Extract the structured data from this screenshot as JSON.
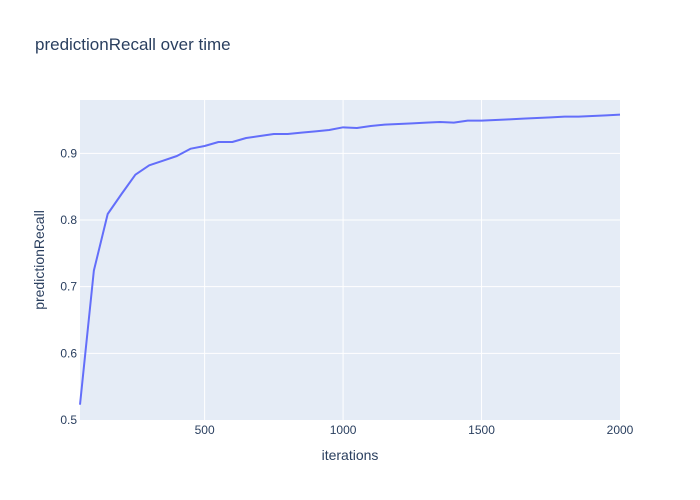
{
  "chart_data": {
    "type": "line",
    "title": "predictionRecall over time",
    "xlabel": "iterations",
    "ylabel": "predictionRecall",
    "xlim": [
      50,
      2000
    ],
    "ylim": [
      0.5,
      0.98
    ],
    "x_ticks": [
      500,
      1000,
      1500,
      2000
    ],
    "y_ticks": [
      0.5,
      0.6,
      0.7,
      0.8,
      0.9
    ],
    "x_tick_labels": [
      "500",
      "1000",
      "1500",
      "2000"
    ],
    "y_tick_labels": [
      "0.5",
      "0.6",
      "0.7",
      "0.8",
      "0.9"
    ],
    "grid": true,
    "colors": {
      "line": "#636efa",
      "plot_bg": "#e5ecf6",
      "text": "#2a3f5f"
    },
    "series": [
      {
        "x": [
          50,
          100,
          150,
          200,
          250,
          300,
          350,
          400,
          450,
          500,
          550,
          600,
          650,
          700,
          750,
          800,
          850,
          900,
          950,
          1000,
          1050,
          1100,
          1150,
          1200,
          1250,
          1300,
          1350,
          1400,
          1450,
          1500,
          1550,
          1600,
          1650,
          1700,
          1750,
          1800,
          1850,
          1900,
          1950,
          2000
        ],
        "y": [
          0.523,
          0.724,
          0.809,
          0.839,
          0.868,
          0.882,
          0.889,
          0.896,
          0.907,
          0.911,
          0.917,
          0.917,
          0.923,
          0.926,
          0.929,
          0.929,
          0.931,
          0.933,
          0.935,
          0.939,
          0.938,
          0.941,
          0.943,
          0.944,
          0.945,
          0.946,
          0.947,
          0.946,
          0.949,
          0.949,
          0.95,
          0.951,
          0.952,
          0.953,
          0.954,
          0.955,
          0.955,
          0.956,
          0.957,
          0.958
        ]
      }
    ]
  }
}
